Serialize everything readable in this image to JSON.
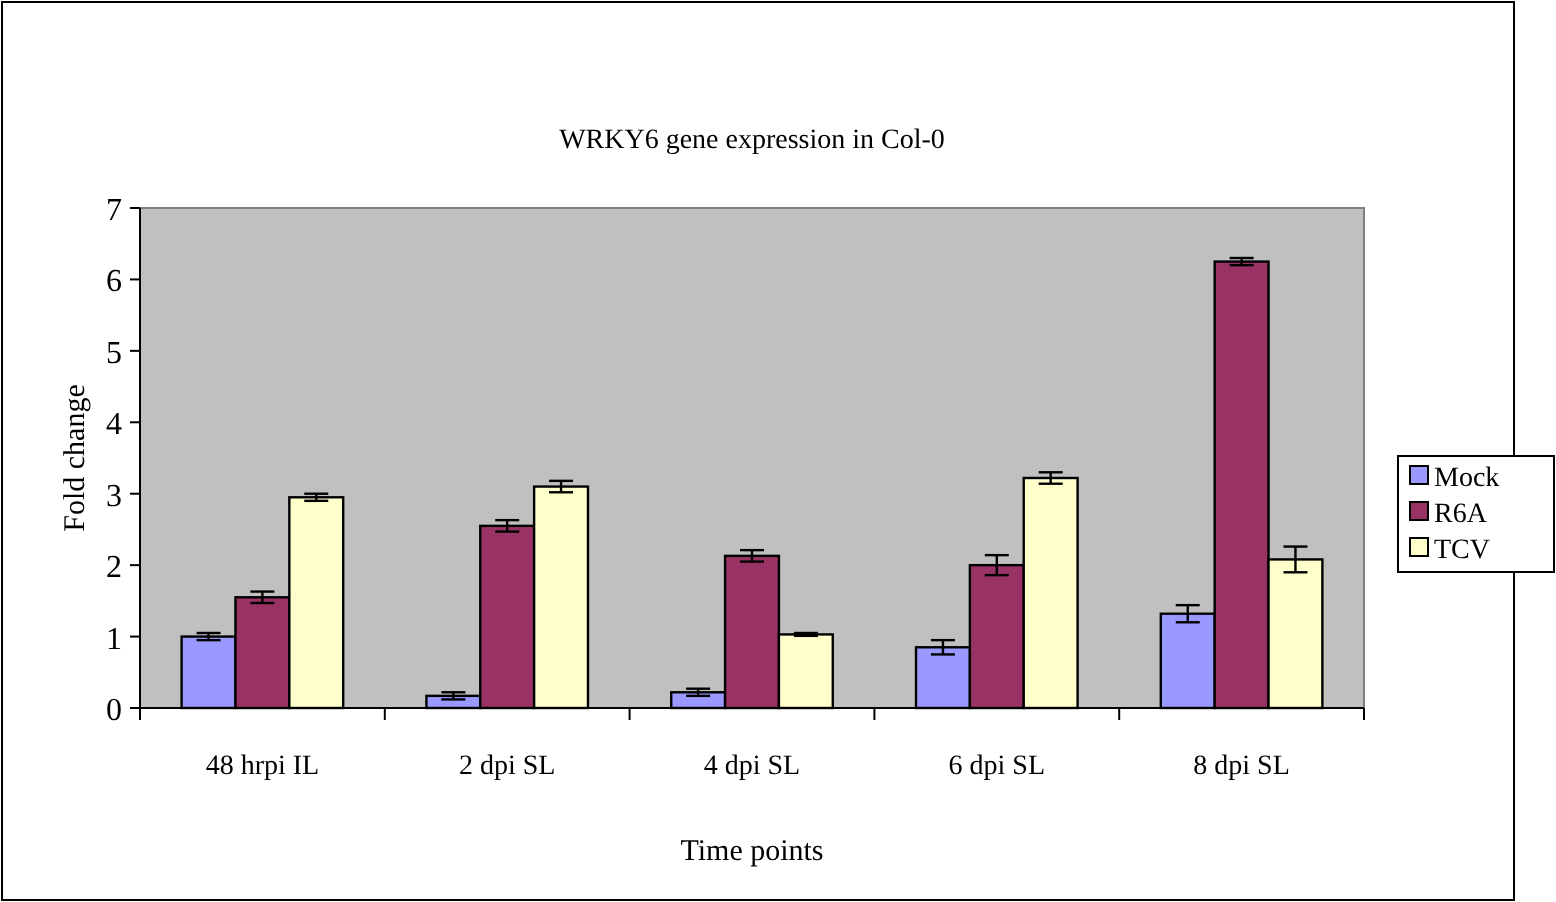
{
  "chart_data": {
    "type": "bar",
    "title": "WRKY6 gene expression in Col-0",
    "xlabel": "Time points",
    "ylabel": "Fold change",
    "categories": [
      "48 hrpi IL",
      "2 dpi SL",
      "4 dpi SL",
      "6 dpi SL",
      "8 dpi SL"
    ],
    "series": [
      {
        "name": "Mock",
        "color": "#9999ff",
        "values": [
          1.0,
          0.17,
          0.22,
          0.85,
          1.32
        ],
        "errors": [
          0.05,
          0.05,
          0.05,
          0.1,
          0.12
        ]
      },
      {
        "name": "R6A",
        "color": "#993366",
        "values": [
          1.55,
          2.55,
          2.13,
          2.0,
          6.25
        ],
        "errors": [
          0.08,
          0.08,
          0.08,
          0.14,
          0.05
        ]
      },
      {
        "name": "TCV",
        "color": "#ffffcc",
        "values": [
          2.95,
          3.1,
          1.03,
          3.22,
          2.08
        ],
        "errors": [
          0.05,
          0.08,
          0.02,
          0.08,
          0.18
        ]
      }
    ],
    "ylim": [
      0,
      7
    ],
    "yticks": [
      0,
      1,
      2,
      3,
      4,
      5,
      6,
      7
    ],
    "grid": false,
    "legend": "right"
  }
}
